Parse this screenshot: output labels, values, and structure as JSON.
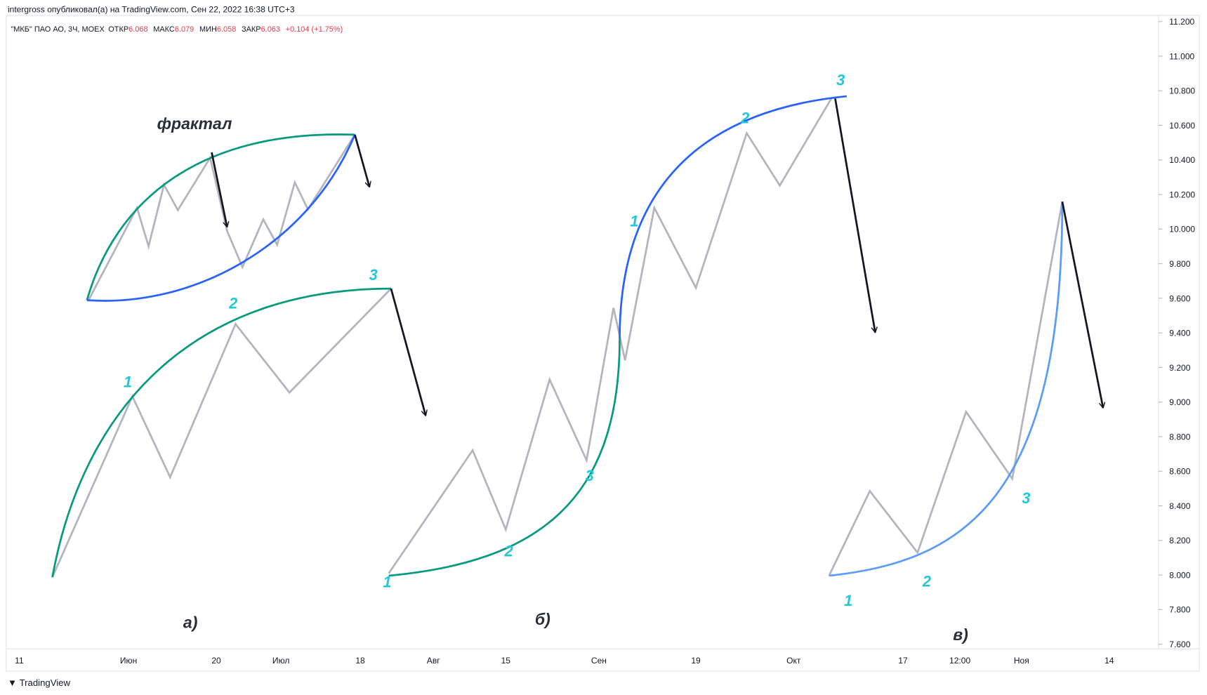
{
  "header": {
    "author_line": "intergross опубликовал(а) на TradingView.com, Сен 22, 2022 16:38 UTC+3",
    "symbol": "\"МКБ\" ПАО АО, 3Ч, MOEX",
    "open_label": "ОТКР",
    "open": "6.068",
    "high_label": "МАКС",
    "high": "6.079",
    "low_label": "МИН",
    "low": "6.058",
    "close_label": "ЗАКР",
    "close": "6.063",
    "change": "+0.104 (+1.75%)"
  },
  "y_axis": {
    "ylim": [
      7.6,
      11.2
    ],
    "ticks": [
      {
        "value": 11.2,
        "label": "11.200"
      },
      {
        "value": 11.0,
        "label": "11.000"
      },
      {
        "value": 10.8,
        "label": "10.800"
      },
      {
        "value": 10.6,
        "label": "10.600"
      },
      {
        "value": 10.4,
        "label": "10.400"
      },
      {
        "value": 10.2,
        "label": "10.200"
      },
      {
        "value": 10.0,
        "label": "10.000"
      },
      {
        "value": 9.8,
        "label": "9.800"
      },
      {
        "value": 9.6,
        "label": "9.600"
      },
      {
        "value": 9.4,
        "label": "9.400"
      },
      {
        "value": 9.2,
        "label": "9.200"
      },
      {
        "value": 9.0,
        "label": "9.000"
      },
      {
        "value": 8.8,
        "label": "8.800"
      },
      {
        "value": 8.6,
        "label": "8.600"
      },
      {
        "value": 8.4,
        "label": "8.400"
      },
      {
        "value": 8.2,
        "label": "8.200"
      },
      {
        "value": 8.0,
        "label": "8.000"
      },
      {
        "value": 7.8,
        "label": "7.800"
      },
      {
        "value": 7.6,
        "label": "7.600"
      }
    ]
  },
  "x_axis": {
    "labels": [
      "11",
      "Июн",
      "20",
      "Июл",
      "18",
      "Авг",
      "15",
      "Сен",
      "19",
      "Окт",
      "17",
      "12:00",
      "Ноя",
      "14"
    ]
  },
  "annotations": {
    "fractal": "фрактал",
    "a": "а)",
    "b": "б)",
    "c": "в)"
  },
  "wave_labels": [
    "1",
    "2",
    "3",
    "1",
    "2",
    "3",
    "1",
    "2",
    "3",
    "1",
    "2",
    "3"
  ],
  "footer": "TradingView"
}
